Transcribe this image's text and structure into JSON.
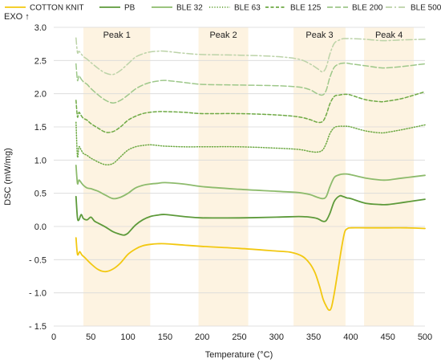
{
  "chart_data": {
    "type": "line",
    "title": "",
    "xlabel": "Temperature (°C)",
    "ylabel": "DSC (mW/mg)",
    "exo_label": "EXO ↑",
    "xlim": [
      0,
      500
    ],
    "ylim": [
      -1.5,
      3.0
    ],
    "x_ticks": [
      0,
      50,
      100,
      150,
      200,
      250,
      300,
      350,
      400,
      450,
      500
    ],
    "y_ticks": [
      -1.5,
      -1.0,
      -0.5,
      0.0,
      0.5,
      1.0,
      1.5,
      2.0,
      2.5,
      3.0
    ],
    "x_tick_labels": [
      "0",
      "50",
      "100",
      "150",
      "200",
      "250",
      "300",
      "350",
      "400",
      "450",
      "500"
    ],
    "y_tick_labels": [
      "- 1.5",
      "- 1.0",
      "- 0.5",
      "0.0",
      "0.5",
      "1.0",
      "1.5",
      "2.0",
      "2.5",
      "3.0"
    ],
    "grid": "horizontal",
    "legend_position": "top",
    "peak_regions": [
      {
        "label": "Peak 1",
        "x_range": [
          40,
          130
        ]
      },
      {
        "label": "Peak 2",
        "x_range": [
          195,
          262
        ]
      },
      {
        "label": "Peak 3",
        "x_range": [
          323,
          393
        ]
      },
      {
        "label": "Peak 4",
        "x_range": [
          418,
          485
        ]
      }
    ],
    "region_color": "#fdf3e1",
    "series": [
      {
        "name": "COTTON KNIT",
        "color": "#f2c811",
        "dash": "solid",
        "x": [
          30,
          32,
          35,
          38,
          42,
          50,
          60,
          70,
          80,
          90,
          100,
          110,
          120,
          130,
          140,
          150,
          175,
          200,
          250,
          300,
          320,
          335,
          345,
          352,
          358,
          363,
          368,
          371,
          374,
          378,
          383,
          388,
          392,
          396,
          400,
          420,
          450,
          475,
          500
        ],
        "y": [
          -0.17,
          -0.42,
          -0.38,
          -0.43,
          -0.47,
          -0.56,
          -0.65,
          -0.68,
          -0.64,
          -0.55,
          -0.42,
          -0.34,
          -0.29,
          -0.27,
          -0.26,
          -0.26,
          -0.28,
          -0.3,
          -0.33,
          -0.37,
          -0.39,
          -0.45,
          -0.56,
          -0.7,
          -0.9,
          -1.1,
          -1.22,
          -1.26,
          -1.22,
          -1.0,
          -0.65,
          -0.3,
          -0.08,
          -0.03,
          -0.02,
          -0.02,
          -0.02,
          -0.02,
          -0.03
        ]
      },
      {
        "name": "PB",
        "color": "#5d9a3a",
        "dash": "solid",
        "x": [
          30,
          32,
          34,
          37,
          40,
          45,
          50,
          55,
          60,
          70,
          80,
          90,
          95,
          100,
          110,
          120,
          130,
          140,
          150,
          175,
          200,
          250,
          300,
          330,
          345,
          355,
          362,
          367,
          372,
          378,
          385,
          390,
          395,
          400,
          420,
          440,
          450,
          470,
          500
        ],
        "y": [
          0.45,
          0.13,
          0.1,
          0.18,
          0.12,
          0.1,
          0.14,
          0.08,
          0.05,
          -0.01,
          -0.08,
          -0.12,
          -0.13,
          -0.1,
          0.02,
          0.1,
          0.15,
          0.17,
          0.18,
          0.15,
          0.13,
          0.13,
          0.14,
          0.15,
          0.14,
          0.12,
          0.08,
          0.09,
          0.2,
          0.38,
          0.46,
          0.45,
          0.43,
          0.42,
          0.35,
          0.33,
          0.33,
          0.36,
          0.41
        ]
      },
      {
        "name": "BLE 32",
        "color": "#8dbb6c",
        "dash": "solid",
        "x": [
          30,
          32,
          34,
          37,
          40,
          45,
          50,
          55,
          60,
          70,
          80,
          90,
          100,
          110,
          120,
          130,
          140,
          150,
          175,
          200,
          250,
          300,
          330,
          345,
          355,
          362,
          367,
          372,
          378,
          385,
          390,
          395,
          400,
          420,
          440,
          450,
          470,
          500
        ],
        "y": [
          0.92,
          0.65,
          0.7,
          0.66,
          0.62,
          0.58,
          0.57,
          0.55,
          0.53,
          0.47,
          0.42,
          0.44,
          0.5,
          0.58,
          0.62,
          0.64,
          0.65,
          0.66,
          0.64,
          0.6,
          0.56,
          0.53,
          0.51,
          0.48,
          0.44,
          0.42,
          0.45,
          0.6,
          0.74,
          0.78,
          0.79,
          0.79,
          0.78,
          0.73,
          0.7,
          0.7,
          0.73,
          0.77
        ]
      },
      {
        "name": "BLE 63",
        "color": "#6faa45",
        "dash": "dotted",
        "x": [
          30,
          32,
          34,
          37,
          40,
          45,
          50,
          60,
          70,
          80,
          90,
          100,
          110,
          120,
          130,
          140,
          150,
          175,
          200,
          250,
          300,
          330,
          345,
          355,
          362,
          367,
          372,
          378,
          385,
          390,
          395,
          400,
          420,
          440,
          450,
          470,
          500
        ],
        "y": [
          1.57,
          1.05,
          1.2,
          1.15,
          1.1,
          1.07,
          1.03,
          0.97,
          0.93,
          0.95,
          1.05,
          1.15,
          1.2,
          1.22,
          1.23,
          1.22,
          1.21,
          1.2,
          1.2,
          1.2,
          1.18,
          1.16,
          1.13,
          1.12,
          1.15,
          1.25,
          1.4,
          1.49,
          1.51,
          1.51,
          1.51,
          1.5,
          1.44,
          1.41,
          1.42,
          1.46,
          1.53
        ]
      },
      {
        "name": "BLE 125",
        "color": "#6faa45",
        "dash": "dashed",
        "x": [
          30,
          32,
          34,
          37,
          40,
          45,
          50,
          60,
          70,
          80,
          90,
          100,
          110,
          120,
          130,
          140,
          150,
          175,
          200,
          250,
          300,
          330,
          345,
          355,
          362,
          367,
          372,
          378,
          385,
          390,
          395,
          400,
          420,
          440,
          450,
          470,
          500
        ],
        "y": [
          1.9,
          1.65,
          1.72,
          1.67,
          1.63,
          1.6,
          1.55,
          1.48,
          1.42,
          1.43,
          1.5,
          1.6,
          1.66,
          1.7,
          1.72,
          1.73,
          1.73,
          1.72,
          1.7,
          1.7,
          1.68,
          1.65,
          1.61,
          1.57,
          1.58,
          1.68,
          1.85,
          1.96,
          1.98,
          1.99,
          1.99,
          1.98,
          1.91,
          1.88,
          1.89,
          1.93,
          2.03
        ]
      },
      {
        "name": "BLE 200",
        "color": "#9ec88a",
        "dash": "longdash",
        "x": [
          30,
          32,
          34,
          37,
          40,
          45,
          50,
          60,
          70,
          80,
          90,
          100,
          110,
          120,
          130,
          140,
          150,
          175,
          200,
          250,
          300,
          330,
          345,
          355,
          362,
          367,
          372,
          378,
          385,
          390,
          395,
          400,
          420,
          440,
          450,
          470,
          500
        ],
        "y": [
          2.45,
          2.2,
          2.27,
          2.22,
          2.18,
          2.14,
          2.08,
          1.98,
          1.9,
          1.86,
          1.9,
          1.98,
          2.07,
          2.13,
          2.17,
          2.19,
          2.2,
          2.17,
          2.14,
          2.13,
          2.12,
          2.1,
          2.06,
          2.0,
          1.98,
          2.05,
          2.25,
          2.4,
          2.45,
          2.46,
          2.46,
          2.45,
          2.42,
          2.39,
          2.39,
          2.41,
          2.45
        ]
      },
      {
        "name": "BLE 500",
        "color": "#bcd3a8",
        "dash": "dashdot",
        "x": [
          30,
          32,
          34,
          37,
          40,
          45,
          50,
          60,
          70,
          80,
          90,
          100,
          110,
          120,
          130,
          140,
          150,
          175,
          200,
          250,
          300,
          330,
          345,
          355,
          362,
          367,
          372,
          378,
          385,
          390,
          395,
          400,
          420,
          440,
          450,
          470,
          500
        ],
        "y": [
          2.84,
          2.62,
          2.64,
          2.6,
          2.56,
          2.52,
          2.47,
          2.38,
          2.31,
          2.29,
          2.35,
          2.45,
          2.55,
          2.6,
          2.63,
          2.64,
          2.64,
          2.61,
          2.59,
          2.58,
          2.56,
          2.52,
          2.45,
          2.38,
          2.33,
          2.4,
          2.6,
          2.76,
          2.81,
          2.83,
          2.83,
          2.83,
          2.82,
          2.8,
          2.8,
          2.81,
          2.82
        ]
      }
    ]
  }
}
